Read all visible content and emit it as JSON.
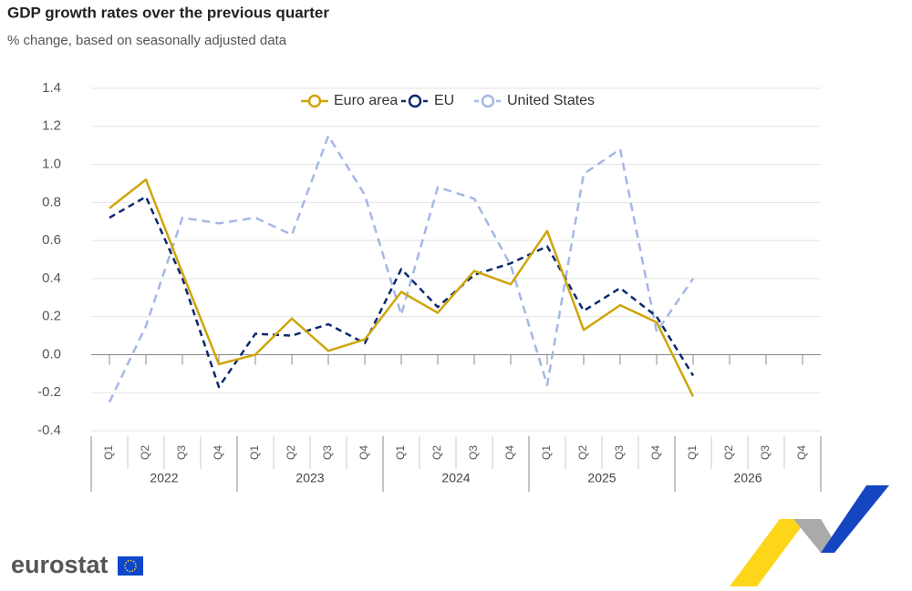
{
  "chart_data": {
    "type": "line",
    "title": "GDP growth rates over the previous quarter",
    "subtitle": "% change, based on seasonally adjusted data",
    "categories": [
      "Q1",
      "Q2",
      "Q3",
      "Q4",
      "Q1",
      "Q2",
      "Q3",
      "Q4",
      "Q1",
      "Q2",
      "Q3",
      "Q4",
      "Q1",
      "Q2",
      "Q3",
      "Q4",
      "Q1",
      "Q2",
      "Q3",
      "Q4"
    ],
    "category_groups": [
      "2022",
      "2023",
      "2024",
      "2025",
      "2026"
    ],
    "series": [
      {
        "name": "Euro area",
        "color": "#cfa50c",
        "dash": "none",
        "values": [
          0.77,
          0.92,
          0.43,
          -0.05,
          0.0,
          0.19,
          0.02,
          0.08,
          0.33,
          0.22,
          0.44,
          0.37,
          0.65,
          0.13,
          0.26,
          0.17,
          -0.22,
          null,
          null,
          null
        ]
      },
      {
        "name": "EU",
        "color": "#0c2a6e",
        "dash": "7,5",
        "values": [
          0.72,
          0.83,
          0.4,
          -0.17,
          0.11,
          0.1,
          0.16,
          0.06,
          0.45,
          0.25,
          0.42,
          0.48,
          0.57,
          0.23,
          0.35,
          0.2,
          -0.11,
          null,
          null,
          null
        ]
      },
      {
        "name": "United States",
        "color": "#a3b8e6",
        "dash": "9,6",
        "values": [
          -0.25,
          0.15,
          0.72,
          0.69,
          0.72,
          0.63,
          1.15,
          0.84,
          0.21,
          0.88,
          0.82,
          0.47,
          -0.16,
          0.95,
          1.08,
          0.12,
          0.4,
          null,
          null,
          null
        ]
      }
    ],
    "ylim": [
      -0.4,
      1.4
    ],
    "yticks": [
      -0.4,
      -0.2,
      {
        "value": 0,
        "label": "0.0"
      },
      0.2,
      0.4,
      0.6,
      0.8,
      {
        "value": 1,
        "label": "1.0"
      },
      1.2,
      1.4
    ],
    "grid": true,
    "legend": "top",
    "source_logo": "eurostat"
  }
}
